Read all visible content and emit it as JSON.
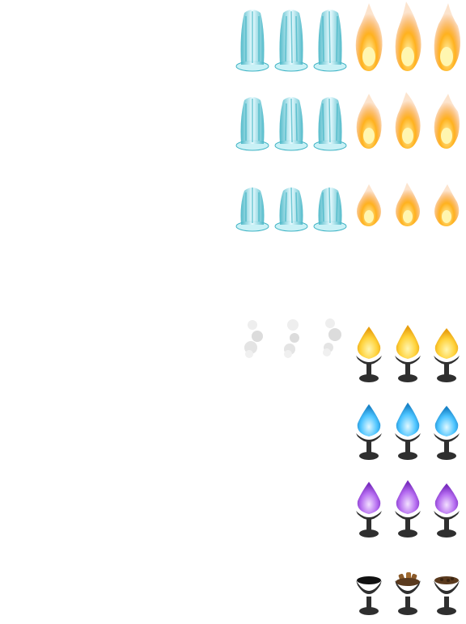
{
  "sheet": {
    "background": "#ffffff",
    "palette": {
      "water_light": "#e8fbff",
      "water_mid": "#9fe3ec",
      "water_dark": "#3fb3c4",
      "fire_core": "#fff6b0",
      "fire_mid": "#ffb21e",
      "fire_outer": "#f27a0c",
      "smoke": "#d8d8d8",
      "flame_yellow": "#ffd23a",
      "flame_blue": "#4cc4ff",
      "flame_purple": "#b56cf0",
      "brazier_metal": "#2f2f2f",
      "coal": "#5a3a1e"
    },
    "rows": [
      {
        "kind": "water-fire",
        "size": "large"
      },
      {
        "kind": "water-fire",
        "size": "medium"
      },
      {
        "kind": "water-fire",
        "size": "small"
      },
      {
        "kind": "smoke-brazier",
        "flame_color": "yellow"
      },
      {
        "kind": "brazier",
        "flame_color": "blue"
      },
      {
        "kind": "brazier",
        "flame_color": "purple"
      },
      {
        "kind": "brazier-empty",
        "contents": [
          "empty",
          "logs",
          "coals"
        ]
      }
    ]
  }
}
